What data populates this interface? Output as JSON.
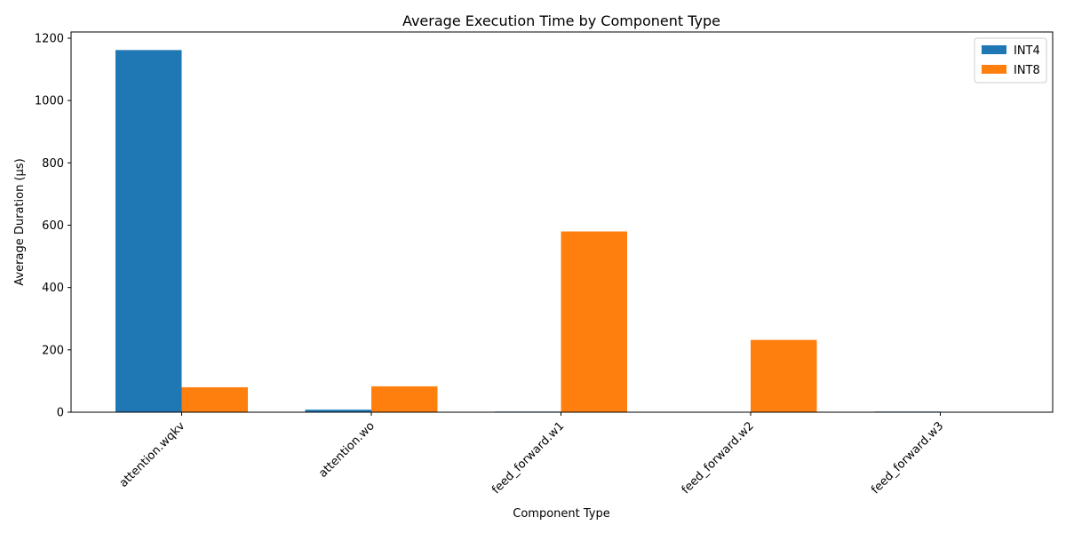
{
  "chart_data": {
    "type": "bar",
    "title": "Average Execution Time by Component Type",
    "xlabel": "Component Type",
    "ylabel": "Average Duration (µs)",
    "categories": [
      "attention.wqkv",
      "attention.wo",
      "feed_forward.w1",
      "feed_forward.w2",
      "feed_forward.w3"
    ],
    "series": [
      {
        "name": "INT4",
        "color": "#1f77b4",
        "values": [
          1162,
          8,
          2,
          0,
          2
        ]
      },
      {
        "name": "INT8",
        "color": "#ff7f0e",
        "values": [
          80,
          83,
          580,
          232,
          0
        ]
      }
    ],
    "ylim": [
      0,
      1220
    ],
    "yticks": [
      "0",
      "200",
      "400",
      "600",
      "800",
      "1000",
      "1200"
    ],
    "ytick_values": [
      0,
      200,
      400,
      600,
      800,
      1000,
      1200
    ],
    "grid": false,
    "legend_position": "upper right",
    "xtick_rotation": 45
  }
}
